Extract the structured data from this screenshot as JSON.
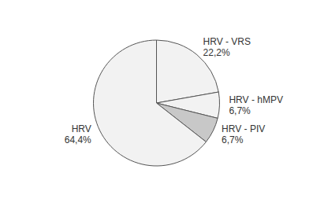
{
  "chart_data": {
    "type": "pie",
    "categories": [
      "HRV - VRS",
      "HRV - hMPV",
      "HRV - PIV",
      "HRV"
    ],
    "values": [
      22.2,
      6.7,
      6.7,
      64.4
    ],
    "value_labels": [
      "22,2%",
      "6,7%",
      "6,7%",
      "64,4%"
    ],
    "colors": [
      "#f2f2f2",
      "#f2f2f2",
      "#c8c8c8",
      "#f2f2f2"
    ]
  }
}
